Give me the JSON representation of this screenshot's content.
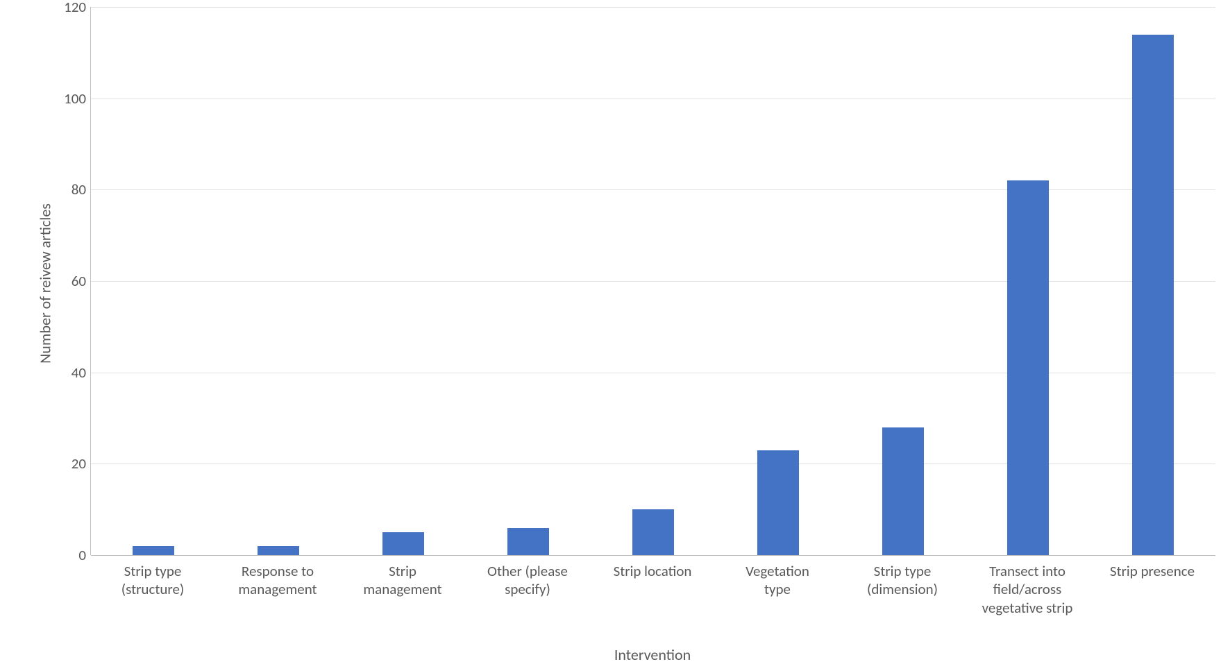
{
  "chart": {
    "type": "bar",
    "ylabel": "Number of reivew articles",
    "xlabel": "Intervention",
    "label_fontsize": 22,
    "tick_fontsize": 21,
    "ylim": [
      0,
      120
    ],
    "ytick_step": 20,
    "yticks": [
      0,
      20,
      40,
      60,
      80,
      100,
      120
    ],
    "background_color": "#ffffff",
    "grid_color": "#e0e0e0",
    "axis_color": "#bfbfbf",
    "bar_color": "#4472c4",
    "bar_width_ratio": 0.33,
    "categories": [
      "Strip type\n(structure)",
      "Response to\nmanagement",
      "Strip\nmanagement",
      "Other (please\nspecify)",
      "Strip location",
      "Vegetation\ntype",
      "Strip type\n(dimension)",
      "Transect into\nfield/across\nvegetative strip",
      "Strip presence"
    ],
    "values": [
      2,
      2,
      5,
      6,
      10,
      23,
      28,
      82,
      114
    ]
  }
}
